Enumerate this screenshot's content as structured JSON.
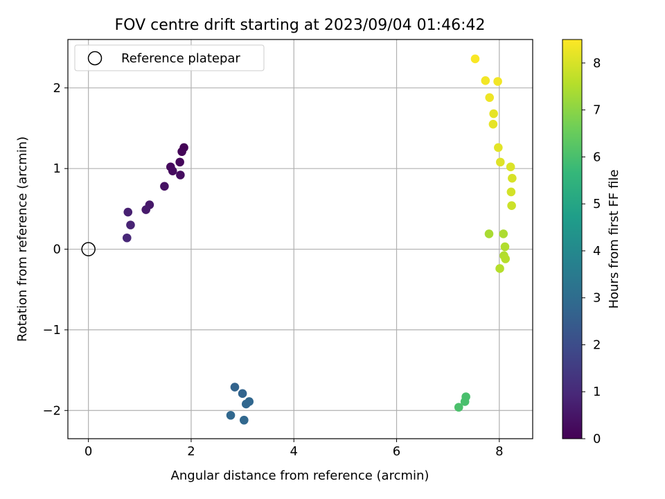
{
  "chart_data": {
    "type": "scatter",
    "title": "FOV centre drift starting at 2023/09/04 01:46:42",
    "xlabel": "Angular distance from reference (arcmin)",
    "ylabel": "Rotation from reference (arcmin)",
    "xlim": [
      -0.4,
      8.65
    ],
    "ylim": [
      -2.35,
      2.6
    ],
    "xticks": [
      0,
      2,
      4,
      6,
      8
    ],
    "xtick_labels": [
      "0",
      "2",
      "4",
      "6",
      "8"
    ],
    "yticks": [
      -2,
      -1,
      0,
      1,
      2
    ],
    "ytick_labels": [
      "−2",
      "−1",
      "0",
      "1",
      "2"
    ],
    "grid": true,
    "legend": {
      "position": "top-left",
      "entries": [
        "Reference platepar"
      ]
    },
    "reference_point": {
      "x": 0,
      "y": 0,
      "marker": "open circle"
    },
    "colorbar": {
      "label": "Hours from first FF file",
      "range": [
        0,
        8.5
      ],
      "ticks": [
        0,
        1,
        2,
        3,
        4,
        5,
        6,
        7,
        8
      ],
      "tick_labels": [
        "0",
        "1",
        "2",
        "3",
        "4",
        "5",
        "6",
        "7",
        "8"
      ],
      "colormap": "viridis",
      "colormap_stops": [
        "#440154",
        "#482878",
        "#3e4989",
        "#31688e",
        "#26828e",
        "#1f9e89",
        "#35b779",
        "#6ece58",
        "#b5de2b",
        "#fde725"
      ]
    },
    "series": [
      {
        "points": [
          {
            "x": 1.86,
            "y": 1.26,
            "c": 0.05
          },
          {
            "x": 1.82,
            "y": 1.21,
            "c": 0.1
          },
          {
            "x": 1.78,
            "y": 1.08,
            "c": 0.15
          },
          {
            "x": 1.6,
            "y": 1.02,
            "c": 0.2
          },
          {
            "x": 1.64,
            "y": 0.97,
            "c": 0.25
          },
          {
            "x": 1.79,
            "y": 0.92,
            "c": 0.3
          },
          {
            "x": 1.48,
            "y": 0.78,
            "c": 0.4
          },
          {
            "x": 1.19,
            "y": 0.55,
            "c": 0.55
          },
          {
            "x": 1.12,
            "y": 0.49,
            "c": 0.6
          },
          {
            "x": 0.77,
            "y": 0.46,
            "c": 0.75
          },
          {
            "x": 0.82,
            "y": 0.3,
            "c": 0.85
          },
          {
            "x": 0.75,
            "y": 0.14,
            "c": 0.95
          },
          {
            "x": 2.85,
            "y": -1.71,
            "c": 2.7
          },
          {
            "x": 3.0,
            "y": -1.79,
            "c": 2.75
          },
          {
            "x": 3.13,
            "y": -1.89,
            "c": 2.8
          },
          {
            "x": 3.07,
            "y": -1.92,
            "c": 2.8
          },
          {
            "x": 2.77,
            "y": -2.06,
            "c": 2.85
          },
          {
            "x": 3.03,
            "y": -2.12,
            "c": 2.85
          },
          {
            "x": 7.35,
            "y": -1.83,
            "c": 6.0
          },
          {
            "x": 7.33,
            "y": -1.89,
            "c": 6.0
          },
          {
            "x": 7.21,
            "y": -1.96,
            "c": 6.05
          },
          {
            "x": 7.8,
            "y": 0.19,
            "c": 7.4
          },
          {
            "x": 8.08,
            "y": 0.19,
            "c": 7.45
          },
          {
            "x": 8.11,
            "y": 0.03,
            "c": 7.5
          },
          {
            "x": 8.09,
            "y": -0.08,
            "c": 7.5
          },
          {
            "x": 8.12,
            "y": -0.12,
            "c": 7.55
          },
          {
            "x": 8.01,
            "y": -0.24,
            "c": 7.55
          },
          {
            "x": 8.24,
            "y": 0.54,
            "c": 7.85
          },
          {
            "x": 8.23,
            "y": 0.71,
            "c": 7.95
          },
          {
            "x": 8.25,
            "y": 0.88,
            "c": 8.0
          },
          {
            "x": 8.22,
            "y": 1.02,
            "c": 8.05
          },
          {
            "x": 8.02,
            "y": 1.08,
            "c": 8.1
          },
          {
            "x": 7.98,
            "y": 1.26,
            "c": 8.15
          },
          {
            "x": 7.88,
            "y": 1.55,
            "c": 8.2
          },
          {
            "x": 7.89,
            "y": 1.68,
            "c": 8.2
          },
          {
            "x": 7.81,
            "y": 1.88,
            "c": 8.3
          },
          {
            "x": 7.73,
            "y": 2.09,
            "c": 8.35
          },
          {
            "x": 7.97,
            "y": 2.08,
            "c": 8.35
          },
          {
            "x": 7.53,
            "y": 2.36,
            "c": 8.45
          }
        ]
      }
    ]
  }
}
